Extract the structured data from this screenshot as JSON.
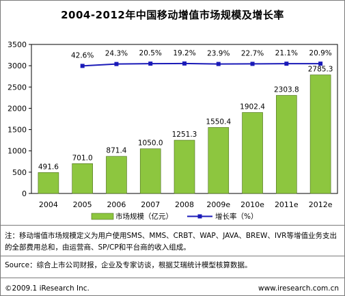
{
  "title": "2004-2012年中国移动增值市场规模及增长率",
  "chart_data": {
    "type": "bar",
    "categories": [
      "2004",
      "2005",
      "2006",
      "2007",
      "2008",
      "2009e",
      "2010e",
      "2011e",
      "2012e"
    ],
    "series": [
      {
        "name": "市场规模（亿元）",
        "type": "bar",
        "values": [
          491.6,
          701.0,
          871.4,
          1050.0,
          1251.3,
          1550.4,
          1902.4,
          2303.8,
          2785.3
        ],
        "labels": [
          "491.6",
          "701.0",
          "871.4",
          "1050.0",
          "1251.3",
          "1550.4",
          "1902.4",
          "2303.8",
          "2785.3"
        ],
        "color": "#8dc63f"
      },
      {
        "name": "增长率（%）",
        "type": "line",
        "values": [
          null,
          42.6,
          24.3,
          20.5,
          19.2,
          23.9,
          22.7,
          21.1,
          20.9
        ],
        "labels": [
          "",
          "42.6%",
          "24.3%",
          "20.5%",
          "19.2%",
          "23.9%",
          "22.7%",
          "21.1%",
          "20.9%"
        ],
        "color": "#1a1ab8"
      }
    ],
    "yticks": [
      "0",
      "500",
      "1000",
      "1500",
      "2000",
      "2500",
      "3000",
      "3500"
    ],
    "ylim": [
      0,
      3500
    ],
    "grid": false,
    "legend": "bottom"
  },
  "note": "注：移动增值市场规模定义为用户使用SMS、MMS、CRBT、WAP、JAVA、BREW、IVR等增值业务支出的全部费用总和，由运营商、SP/CP和平台商的收入组成。",
  "source": "Source：综合上市公司财报，企业及专家访谈，根据艾瑞统计模型核算数据。",
  "footer": {
    "copyright": "©2009.1 iResearch Inc.",
    "url": "www.iresearch.com.cn"
  }
}
